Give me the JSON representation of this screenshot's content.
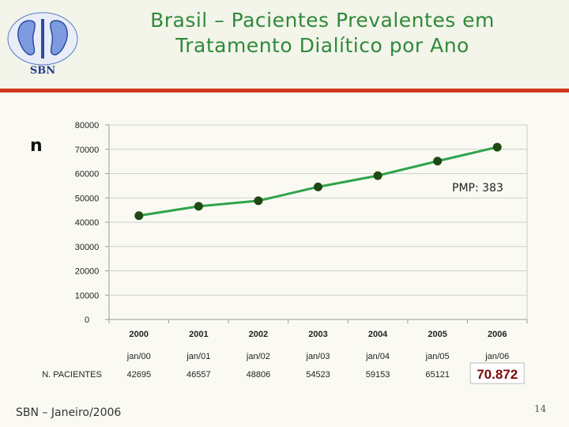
{
  "header": {
    "title_line1": "Brasil – Pacientes Prevalentes em",
    "title_line2": "Tratamento Dialítico por Ano",
    "logo_text": "SBN"
  },
  "colors": {
    "line": "#2fa34a",
    "marker": "#1e4a12",
    "accent_rule": "#d2381e",
    "title": "#2f8a3a",
    "highlight": "#7a0a0a"
  },
  "chart_data": {
    "type": "line",
    "ylabel": "n",
    "y_ticks": [
      "80000",
      "70000",
      "60000",
      "50000",
      "40000",
      "30000",
      "20000",
      "10000",
      "0"
    ],
    "ylim": [
      0,
      80000
    ],
    "categories": [
      "2000",
      "2001",
      "2002",
      "2003",
      "2004",
      "2005",
      "2006"
    ],
    "dates": [
      "jan/00",
      "jan/01",
      "jan/02",
      "jan/03",
      "jan/04",
      "jan/05",
      "jan/06"
    ],
    "values": [
      42695,
      46557,
      48806,
      54523,
      59153,
      65121,
      70872
    ],
    "value_labels": [
      "42695",
      "46557",
      "48806",
      "54523",
      "59153",
      "65121",
      "70.872"
    ],
    "row_label": "N. PACIENTES",
    "annotation": "PMP: 383",
    "grid": "horizontal"
  },
  "footer": {
    "text": "SBN – Janeiro/2006",
    "page": "14"
  }
}
